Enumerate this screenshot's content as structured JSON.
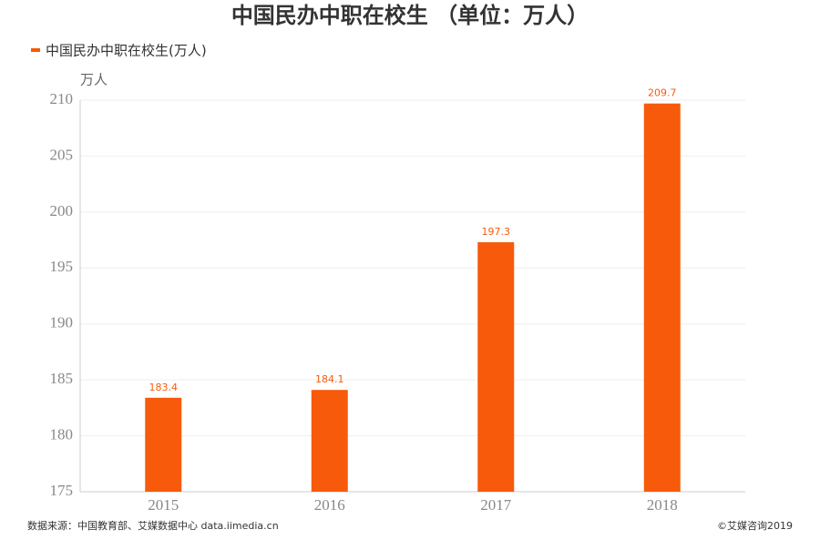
{
  "chart_data": {
    "type": "bar",
    "title": "中国民办中职在校生 （单位：万人）",
    "legend_label": "中国民办中职在校生(万人)",
    "y_axis_label": "万人",
    "categories": [
      "2015",
      "2016",
      "2017",
      "2018"
    ],
    "series": [
      {
        "name": "中国民办中职在校生(万人)",
        "color": "#f75a0a",
        "values": [
          183.4,
          184.1,
          197.3,
          209.7
        ]
      }
    ],
    "ylim": [
      175,
      210
    ],
    "yticks": [
      175,
      180,
      185,
      190,
      195,
      200,
      205,
      210
    ],
    "grid": true,
    "source": "数据来源：中国教育部、艾媒数据中心 data.iimedia.cn",
    "copyright": "©艾媒咨询2019"
  }
}
